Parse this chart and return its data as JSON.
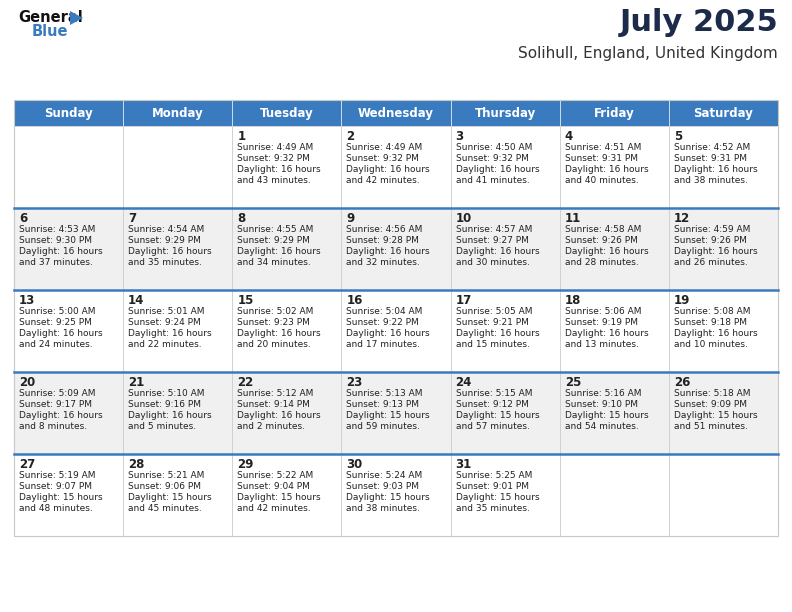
{
  "title": "July 2025",
  "subtitle": "Solihull, England, United Kingdom",
  "header_bg": "#3a7bbf",
  "header_text": "#ffffff",
  "cell_bg_light": "#ffffff",
  "cell_bg_dark": "#f0f0f0",
  "cell_border": "#c8c8c8",
  "text_color": "#222222",
  "days_of_week": [
    "Sunday",
    "Monday",
    "Tuesday",
    "Wednesday",
    "Thursday",
    "Friday",
    "Saturday"
  ],
  "weeks": [
    [
      {
        "day": "",
        "sunrise": "",
        "sunset": "",
        "daylight": ""
      },
      {
        "day": "",
        "sunrise": "",
        "sunset": "",
        "daylight": ""
      },
      {
        "day": "1",
        "sunrise": "4:49 AM",
        "sunset": "9:32 PM",
        "daylight": "16 hours and 43 minutes."
      },
      {
        "day": "2",
        "sunrise": "4:49 AM",
        "sunset": "9:32 PM",
        "daylight": "16 hours and 42 minutes."
      },
      {
        "day": "3",
        "sunrise": "4:50 AM",
        "sunset": "9:32 PM",
        "daylight": "16 hours and 41 minutes."
      },
      {
        "day": "4",
        "sunrise": "4:51 AM",
        "sunset": "9:31 PM",
        "daylight": "16 hours and 40 minutes."
      },
      {
        "day": "5",
        "sunrise": "4:52 AM",
        "sunset": "9:31 PM",
        "daylight": "16 hours and 38 minutes."
      }
    ],
    [
      {
        "day": "6",
        "sunrise": "4:53 AM",
        "sunset": "9:30 PM",
        "daylight": "16 hours and 37 minutes."
      },
      {
        "day": "7",
        "sunrise": "4:54 AM",
        "sunset": "9:29 PM",
        "daylight": "16 hours and 35 minutes."
      },
      {
        "day": "8",
        "sunrise": "4:55 AM",
        "sunset": "9:29 PM",
        "daylight": "16 hours and 34 minutes."
      },
      {
        "day": "9",
        "sunrise": "4:56 AM",
        "sunset": "9:28 PM",
        "daylight": "16 hours and 32 minutes."
      },
      {
        "day": "10",
        "sunrise": "4:57 AM",
        "sunset": "9:27 PM",
        "daylight": "16 hours and 30 minutes."
      },
      {
        "day": "11",
        "sunrise": "4:58 AM",
        "sunset": "9:26 PM",
        "daylight": "16 hours and 28 minutes."
      },
      {
        "day": "12",
        "sunrise": "4:59 AM",
        "sunset": "9:26 PM",
        "daylight": "16 hours and 26 minutes."
      }
    ],
    [
      {
        "day": "13",
        "sunrise": "5:00 AM",
        "sunset": "9:25 PM",
        "daylight": "16 hours and 24 minutes."
      },
      {
        "day": "14",
        "sunrise": "5:01 AM",
        "sunset": "9:24 PM",
        "daylight": "16 hours and 22 minutes."
      },
      {
        "day": "15",
        "sunrise": "5:02 AM",
        "sunset": "9:23 PM",
        "daylight": "16 hours and 20 minutes."
      },
      {
        "day": "16",
        "sunrise": "5:04 AM",
        "sunset": "9:22 PM",
        "daylight": "16 hours and 17 minutes."
      },
      {
        "day": "17",
        "sunrise": "5:05 AM",
        "sunset": "9:21 PM",
        "daylight": "16 hours and 15 minutes."
      },
      {
        "day": "18",
        "sunrise": "5:06 AM",
        "sunset": "9:19 PM",
        "daylight": "16 hours and 13 minutes."
      },
      {
        "day": "19",
        "sunrise": "5:08 AM",
        "sunset": "9:18 PM",
        "daylight": "16 hours and 10 minutes."
      }
    ],
    [
      {
        "day": "20",
        "sunrise": "5:09 AM",
        "sunset": "9:17 PM",
        "daylight": "16 hours and 8 minutes."
      },
      {
        "day": "21",
        "sunrise": "5:10 AM",
        "sunset": "9:16 PM",
        "daylight": "16 hours and 5 minutes."
      },
      {
        "day": "22",
        "sunrise": "5:12 AM",
        "sunset": "9:14 PM",
        "daylight": "16 hours and 2 minutes."
      },
      {
        "day": "23",
        "sunrise": "5:13 AM",
        "sunset": "9:13 PM",
        "daylight": "15 hours and 59 minutes."
      },
      {
        "day": "24",
        "sunrise": "5:15 AM",
        "sunset": "9:12 PM",
        "daylight": "15 hours and 57 minutes."
      },
      {
        "day": "25",
        "sunrise": "5:16 AM",
        "sunset": "9:10 PM",
        "daylight": "15 hours and 54 minutes."
      },
      {
        "day": "26",
        "sunrise": "5:18 AM",
        "sunset": "9:09 PM",
        "daylight": "15 hours and 51 minutes."
      }
    ],
    [
      {
        "day": "27",
        "sunrise": "5:19 AM",
        "sunset": "9:07 PM",
        "daylight": "15 hours and 48 minutes."
      },
      {
        "day": "28",
        "sunrise": "5:21 AM",
        "sunset": "9:06 PM",
        "daylight": "15 hours and 45 minutes."
      },
      {
        "day": "29",
        "sunrise": "5:22 AM",
        "sunset": "9:04 PM",
        "daylight": "15 hours and 42 minutes."
      },
      {
        "day": "30",
        "sunrise": "5:24 AM",
        "sunset": "9:03 PM",
        "daylight": "15 hours and 38 minutes."
      },
      {
        "day": "31",
        "sunrise": "5:25 AM",
        "sunset": "9:01 PM",
        "daylight": "15 hours and 35 minutes."
      },
      {
        "day": "",
        "sunrise": "",
        "sunset": "",
        "daylight": ""
      },
      {
        "day": "",
        "sunrise": "",
        "sunset": "",
        "daylight": ""
      }
    ]
  ]
}
